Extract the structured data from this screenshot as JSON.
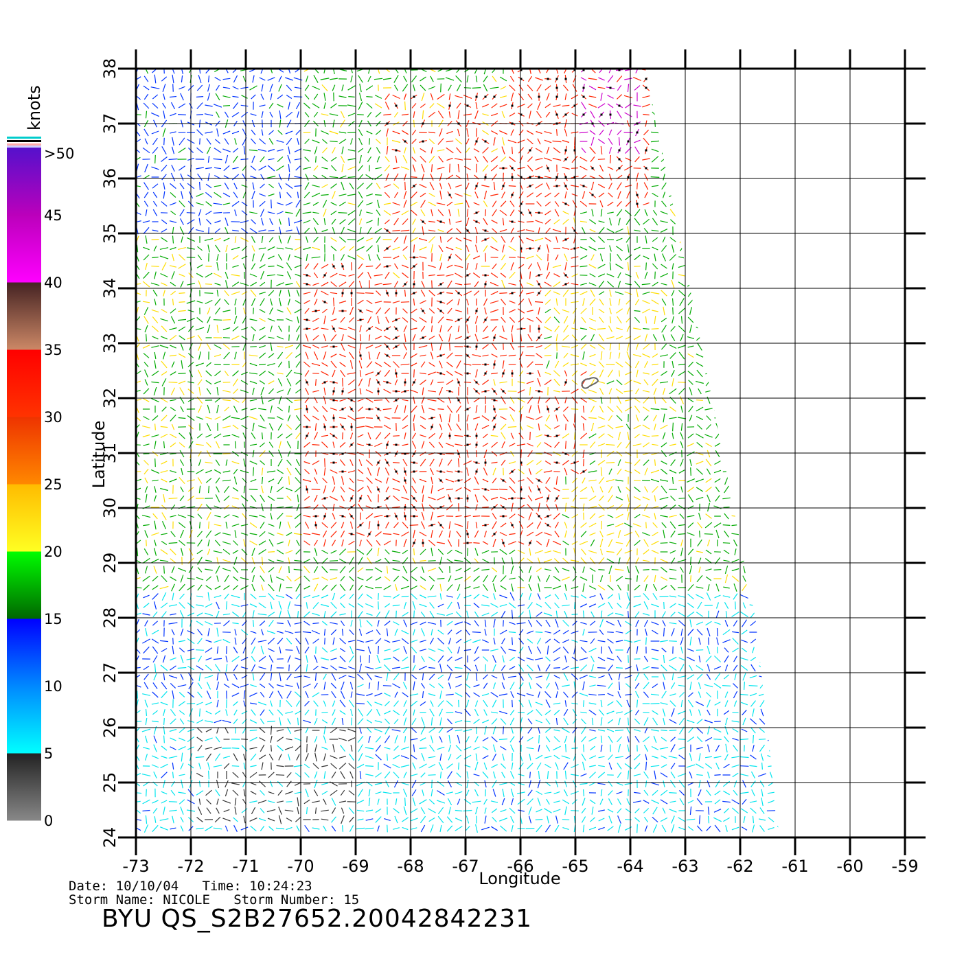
{
  "map": {
    "longitude_label": "Longitude",
    "latitude_label": "Latitude",
    "lon_ticks": [
      "-73",
      "-72",
      "-71",
      "-70",
      "-69",
      "-68",
      "-67",
      "-66",
      "-65",
      "-64",
      "-63",
      "-62",
      "-61",
      "-60",
      "-59"
    ],
    "lat_ticks": [
      "24",
      "25",
      "26",
      "27",
      "28",
      "29",
      "30",
      "31",
      "32",
      "33",
      "34",
      "35",
      "36",
      "37",
      "38"
    ],
    "lon_range": [
      -73,
      -59
    ],
    "lat_range": [
      24,
      38
    ],
    "feature": "island (Bermuda) outline near 32.3N 64.8W"
  },
  "colorbar": {
    "unit_label": "knots",
    "tick_labels": [
      "0",
      "5",
      "10",
      "15",
      "20",
      "25",
      "30",
      "35",
      "40",
      "45",
      ">50"
    ],
    "bands": [
      {
        "range": [
          0,
          5
        ],
        "colors": [
          "#888888",
          "#222222"
        ]
      },
      {
        "range": [
          5,
          10
        ],
        "colors": [
          "#00ffff",
          "#0088ff"
        ]
      },
      {
        "range": [
          10,
          15
        ],
        "colors": [
          "#0088ff",
          "#0000ff"
        ]
      },
      {
        "range": [
          15,
          20
        ],
        "colors": [
          "#006600",
          "#00ff00"
        ]
      },
      {
        "range": [
          20,
          25
        ],
        "colors": [
          "#ffff22",
          "#ffbb00"
        ]
      },
      {
        "range": [
          25,
          30
        ],
        "colors": [
          "#ff8800",
          "#ee3300"
        ]
      },
      {
        "range": [
          30,
          35
        ],
        "colors": [
          "#ff3300",
          "#ff0000"
        ]
      },
      {
        "range": [
          35,
          40
        ],
        "colors": [
          "#cc8866",
          "#442222"
        ]
      },
      {
        "range": [
          40,
          45
        ],
        "colors": [
          "#ff00ff",
          "#bb00bb"
        ]
      },
      {
        "range": [
          45,
          50
        ],
        "colors": [
          "#bb00bb",
          "#5511cc"
        ]
      }
    ]
  },
  "footer": {
    "date_line": "Date: 10/10/04   Time: 10:24:23",
    "storm_line": "Storm Name: NICOLE   Storm Number: 15",
    "file_title": "BYU QS_S2B27652.20042842231"
  },
  "colors": {
    "calm": "#333333",
    "light": "#00e5ee",
    "moderate": "#0033ff",
    "fresh": "#00aa00",
    "strong": "#ffdd00",
    "gale": "#ff2200",
    "storm": "#cc00cc"
  }
}
